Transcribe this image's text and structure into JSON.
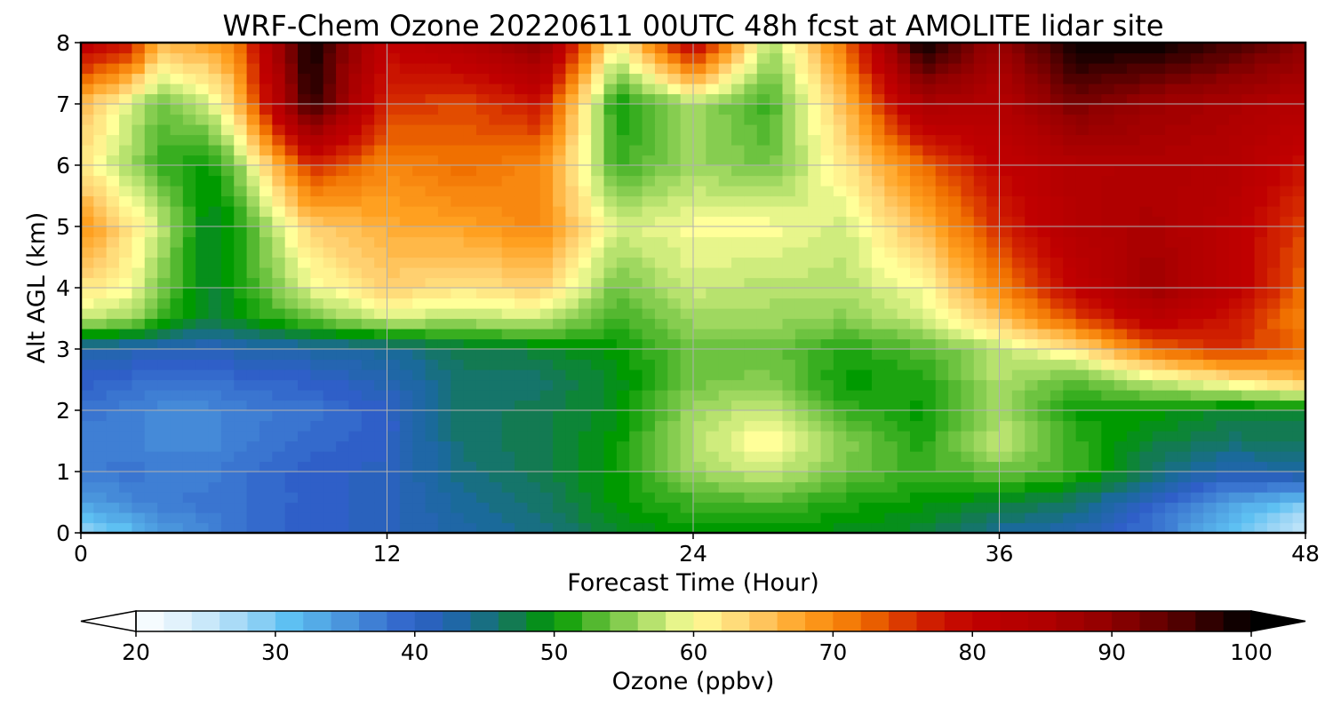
{
  "chart_data": {
    "type": "heatmap",
    "title": "WRF-Chem Ozone  20220611 00UTC 48h fcst at AMOLITE lidar site",
    "xlabel": "Forecast Time (Hour)",
    "ylabel": "Alt AGL (km)",
    "xlim": [
      0,
      48
    ],
    "ylim": [
      0,
      8
    ],
    "xticks": [
      0,
      12,
      24,
      36,
      48
    ],
    "yticks": [
      0,
      1,
      2,
      3,
      4,
      5,
      6,
      7,
      8
    ],
    "grid": true,
    "colorbar": {
      "label": "Ozone  (ppbv)",
      "min": 20,
      "max": 100,
      "ticks": [
        20,
        30,
        40,
        50,
        60,
        70,
        80,
        90,
        100
      ],
      "extend": "both",
      "orientation": "horizontal",
      "colors": [
        {
          "v": 20,
          "c": "#ffffff"
        },
        {
          "v": 24,
          "c": "#d8eefb"
        },
        {
          "v": 28,
          "c": "#9bd5f5"
        },
        {
          "v": 31,
          "c": "#5ec0f2"
        },
        {
          "v": 35,
          "c": "#4a95dc"
        },
        {
          "v": 40,
          "c": "#2f5fc8"
        },
        {
          "v": 44,
          "c": "#1a6a9a"
        },
        {
          "v": 47,
          "c": "#137a52"
        },
        {
          "v": 50,
          "c": "#009a00"
        },
        {
          "v": 53,
          "c": "#54b830"
        },
        {
          "v": 56,
          "c": "#9fd860"
        },
        {
          "v": 60,
          "c": "#ffff99"
        },
        {
          "v": 64,
          "c": "#ffd070"
        },
        {
          "v": 68,
          "c": "#ffa020"
        },
        {
          "v": 72,
          "c": "#f07000"
        },
        {
          "v": 76,
          "c": "#d42800"
        },
        {
          "v": 80,
          "c": "#c00000"
        },
        {
          "v": 85,
          "c": "#b00000"
        },
        {
          "v": 90,
          "c": "#900000"
        },
        {
          "v": 95,
          "c": "#500000"
        },
        {
          "v": 100,
          "c": "#000000"
        }
      ]
    },
    "x": [
      0,
      2,
      3,
      5,
      6,
      9,
      12,
      15,
      18,
      21,
      24,
      27,
      30,
      33,
      36,
      39,
      42,
      45,
      48
    ],
    "y": [
      0,
      0.5,
      1,
      1.5,
      2,
      2.5,
      3,
      3.5,
      4,
      5,
      6,
      7,
      8
    ],
    "z": [
      [
        28,
        31,
        34,
        36,
        38,
        40,
        41,
        43,
        45,
        48,
        50,
        50,
        49,
        48,
        44,
        42,
        38,
        31,
        24
      ],
      [
        34,
        36,
        37,
        38,
        38,
        40,
        41,
        44,
        46,
        50,
        52,
        53,
        51,
        50,
        48,
        46,
        40,
        34,
        30
      ],
      [
        37,
        38,
        37,
        37,
        38,
        40,
        41,
        45,
        47,
        50,
        56,
        58,
        54,
        52,
        54,
        52,
        46,
        42,
        44
      ],
      [
        37,
        37,
        36,
        36,
        37,
        39,
        40,
        46,
        47,
        50,
        57,
        61,
        55,
        51,
        58,
        52,
        48,
        46,
        47
      ],
      [
        38,
        37,
        36,
        36,
        37,
        38,
        40,
        46,
        47,
        49,
        56,
        58,
        52,
        50,
        56,
        50,
        50,
        48,
        48
      ],
      [
        40,
        39,
        38,
        38,
        39,
        40,
        42,
        46,
        46,
        49,
        54,
        55,
        50,
        51,
        57,
        53,
        58,
        62,
        66
      ],
      [
        43,
        42,
        42,
        41,
        42,
        43,
        44,
        47,
        48,
        50,
        54,
        54,
        51,
        53,
        57,
        62,
        72,
        76,
        72
      ],
      [
        58,
        56,
        52,
        48,
        49,
        54,
        58,
        57,
        58,
        52,
        56,
        56,
        55,
        58,
        65,
        74,
        82,
        78,
        70
      ],
      [
        62,
        60,
        55,
        48,
        50,
        59,
        64,
        62,
        64,
        54,
        58,
        57,
        57,
        60,
        70,
        80,
        88,
        82,
        72
      ],
      [
        70,
        62,
        58,
        48,
        50,
        64,
        67,
        68,
        70,
        58,
        60,
        60,
        58,
        66,
        76,
        84,
        86,
        82,
        74
      ],
      [
        62,
        56,
        52,
        50,
        54,
        76,
        70,
        72,
        70,
        52,
        56,
        54,
        62,
        72,
        80,
        84,
        85,
        84,
        78
      ],
      [
        66,
        58,
        54,
        58,
        64,
        98,
        76,
        74,
        78,
        50,
        56,
        52,
        66,
        86,
        84,
        92,
        88,
        86,
        84
      ],
      [
        82,
        78,
        66,
        68,
        70,
        100,
        80,
        84,
        90,
        60,
        82,
        56,
        72,
        100,
        88,
        100,
        100,
        96,
        90
      ]
    ]
  }
}
